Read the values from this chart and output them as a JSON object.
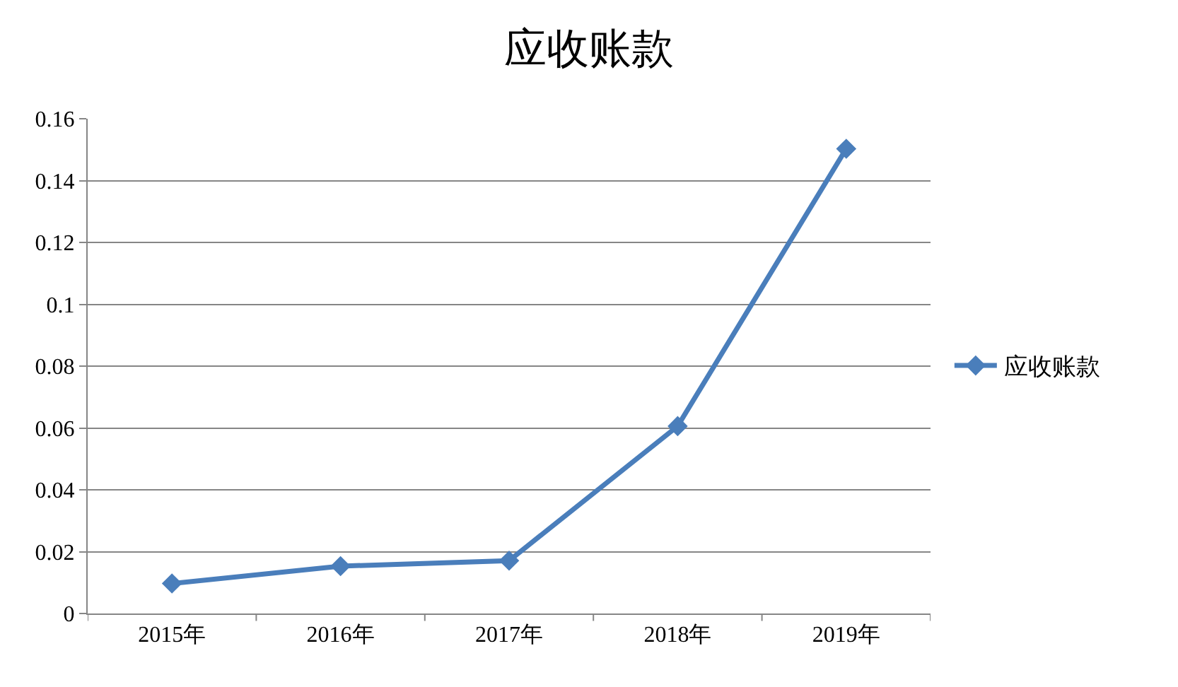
{
  "chart_data": {
    "type": "line",
    "title": "应收账款",
    "categories": [
      "2015年",
      "2016年",
      "2017年",
      "2018年",
      "2019年"
    ],
    "series": [
      {
        "name": "应收账款",
        "color": "#4a7ebb",
        "values": [
          0.0097,
          0.0153,
          0.0171,
          0.0606,
          0.1503
        ]
      }
    ],
    "ylim": [
      0,
      0.16
    ],
    "yticks": [
      0,
      0.02,
      0.04,
      0.06,
      0.08,
      0.1,
      0.12,
      0.14,
      0.16
    ],
    "grid": "y",
    "legend": "right",
    "marker": "diamond",
    "line_style": "solid"
  }
}
